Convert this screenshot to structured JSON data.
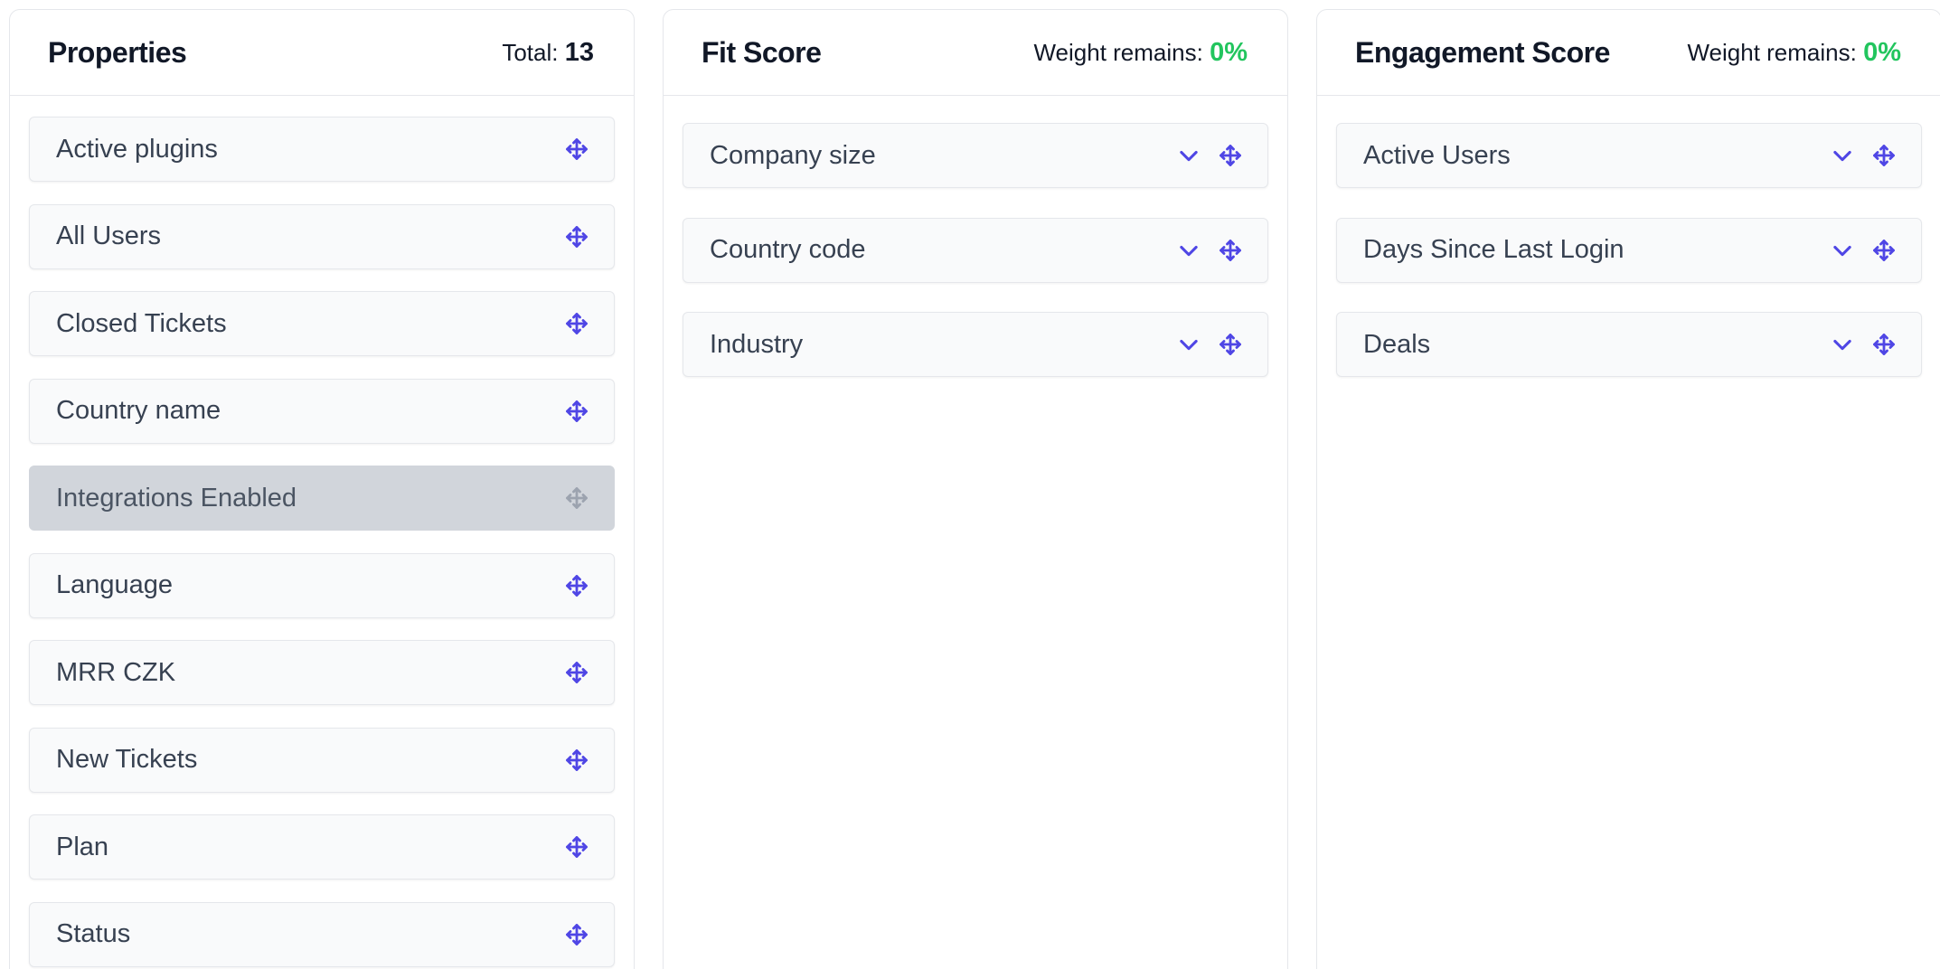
{
  "properties": {
    "title": "Properties",
    "total_label": "Total:",
    "total_value": "13",
    "items": [
      {
        "label": "Active plugins"
      },
      {
        "label": "All Users"
      },
      {
        "label": "Closed Tickets"
      },
      {
        "label": "Country name"
      },
      {
        "label": "Integrations Enabled",
        "state": "dragging"
      },
      {
        "label": "Language"
      },
      {
        "label": "MRR CZK"
      },
      {
        "label": "New Tickets"
      },
      {
        "label": "Plan"
      },
      {
        "label": "Status"
      }
    ]
  },
  "fit_score": {
    "title": "Fit Score",
    "weight_label": "Weight remains:",
    "weight_value": "0%",
    "items": [
      {
        "label": "Company size"
      },
      {
        "label": "Country code"
      },
      {
        "label": "Industry"
      }
    ]
  },
  "engagement_score": {
    "title": "Engagement Score",
    "weight_label": "Weight remains:",
    "weight_value": "0%",
    "items": [
      {
        "label": "Active Users"
      },
      {
        "label": "Days Since Last Login"
      },
      {
        "label": "Deals"
      }
    ]
  },
  "icons": {
    "drag": "move-icon",
    "expand": "chevron-down-icon"
  },
  "colors": {
    "accent": "#4f46e5",
    "accent_muted": "#9ca3af",
    "positive": "#22c55e"
  }
}
